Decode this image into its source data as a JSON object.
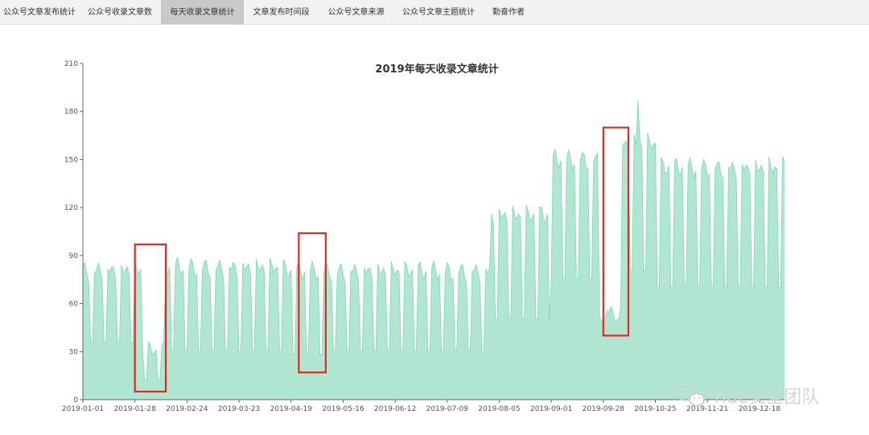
{
  "tabs": [
    {
      "label": "公众号文章发布统计",
      "active": false
    },
    {
      "label": "公众号收录文章数",
      "active": false
    },
    {
      "label": "每天收录文章统计",
      "active": true
    },
    {
      "label": "文章发布时间段",
      "active": false
    },
    {
      "label": "公众号文章来源",
      "active": false
    },
    {
      "label": "公众号文章主题统计",
      "active": false
    },
    {
      "label": "勤奋作者",
      "active": false
    }
  ],
  "watermark": {
    "text": "Tide安全团队",
    "icon": "wechat-icon"
  },
  "colors": {
    "area_fill": "#b0e6d2",
    "area_stroke": "#7fd6b4",
    "highlight": "#e02b20",
    "axis": "#666666"
  },
  "chart_data": {
    "type": "area",
    "title": "2019年每天收录文章统计",
    "xlabel": "",
    "ylabel": "",
    "ylim": [
      0,
      210
    ],
    "y_ticks": [
      0,
      30,
      60,
      90,
      120,
      150,
      180,
      210
    ],
    "x_tick_labels": [
      "2019-01-01",
      "2019-01-28",
      "2019-02-24",
      "2019-03-23",
      "2019-04-19",
      "2019-05-16",
      "2019-06-12",
      "2019-07-09",
      "2019-08-05",
      "2019-09-01",
      "2019-09-28",
      "2019-10-25",
      "2019-11-21",
      "2019-12-18"
    ],
    "x_start": "2019-01-01",
    "x_end": "2019-12-31",
    "grid": false,
    "weekly_pattern": {
      "note": "values oscillate weekly between the weekday peak and weekend trough",
      "segments": [
        {
          "from": "2019-01-01",
          "to": "2019-01-31",
          "peak": 80,
          "trough": 35
        },
        {
          "from": "2019-02-01",
          "to": "2019-02-12",
          "peak": 30,
          "trough": 12
        },
        {
          "from": "2019-02-13",
          "to": "2019-04-15",
          "peak": 82,
          "trough": 30
        },
        {
          "from": "2019-04-16",
          "to": "2019-05-06",
          "peak": 80,
          "trough": 28
        },
        {
          "from": "2019-05-07",
          "to": "2019-07-31",
          "peak": 80,
          "trough": 30
        },
        {
          "from": "2019-08-01",
          "to": "2019-08-31",
          "peak": 115,
          "trough": 50
        },
        {
          "from": "2019-09-01",
          "to": "2019-09-25",
          "peak": 150,
          "trough": 75
        },
        {
          "from": "2019-09-26",
          "to": "2019-10-07",
          "peak": 55,
          "trough": 50
        },
        {
          "from": "2019-10-08",
          "to": "2019-10-25",
          "peak": 160,
          "trough": 80
        },
        {
          "from": "2019-10-26",
          "to": "2019-12-31",
          "peak": 145,
          "trough": 70
        }
      ],
      "max": {
        "date": "2019-10-16",
        "value": 187
      }
    },
    "highlights": [
      {
        "from": "2019-01-28",
        "to": "2019-02-13",
        "ymin": 5,
        "ymax": 97
      },
      {
        "from": "2019-04-23",
        "to": "2019-05-07",
        "ymin": 17,
        "ymax": 104
      },
      {
        "from": "2019-09-28",
        "to": "2019-10-11",
        "ymin": 40,
        "ymax": 170
      }
    ]
  }
}
